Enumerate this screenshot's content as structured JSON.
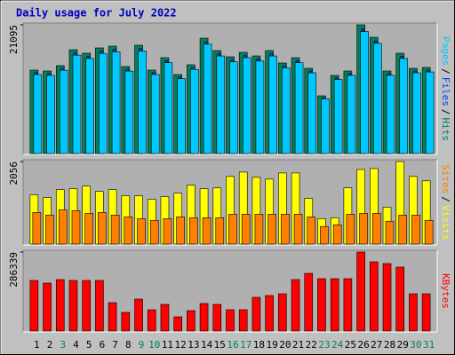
{
  "title": "Daily usage for July 2022",
  "separator": "/",
  "weekend_color": "#00805c",
  "weekend_indices": [
    2,
    8,
    9,
    15,
    16,
    22,
    23,
    29,
    30
  ],
  "chart_data": [
    {
      "type": "bar",
      "ylim": [
        0,
        21095
      ],
      "yticks": [
        21095
      ],
      "series": [
        {
          "name": "Hits",
          "color": "#00805c",
          "values": [
            13624,
            13478,
            14357,
            16994,
            16408,
            17287,
            17580,
            14210,
            17726,
            13624,
            15675,
            12892,
            14503,
            18898,
            16847,
            15822,
            16554,
            15968,
            16847,
            14796,
            15675,
            13917,
            9376,
            12745,
            13478,
            21095,
            19045,
            13478,
            16408,
            13917,
            14064
          ]
        },
        {
          "name": "Files",
          "color": "#0040ff",
          "values": [
            13200,
            13050,
            13900,
            16450,
            15900,
            16750,
            17030,
            13760,
            17170,
            13200,
            15180,
            12480,
            14050,
            18300,
            16320,
            15320,
            16030,
            15460,
            16320,
            14330,
            15180,
            13480,
            9080,
            12340,
            13050,
            20430,
            18440,
            13050,
            15900,
            13480,
            13620
          ]
        },
        {
          "name": "Pages",
          "color": "#00c8ff",
          "values": [
            12900,
            12760,
            13600,
            16090,
            15540,
            16380,
            16650,
            13460,
            16790,
            12900,
            14850,
            12210,
            13740,
            17900,
            15960,
            14990,
            15680,
            15120,
            15960,
            14010,
            14850,
            13180,
            8880,
            12070,
            12760,
            19980,
            18040,
            12760,
            15540,
            13180,
            13320
          ]
        }
      ]
    },
    {
      "type": "bar",
      "ylim": [
        0,
        2056
      ],
      "yticks": [
        2056
      ],
      "series": [
        {
          "name": "Visits",
          "color": "#ffff00",
          "values": [
            1216,
            1149,
            1348,
            1370,
            1437,
            1304,
            1348,
            1193,
            1193,
            1105,
            1171,
            1260,
            1459,
            1370,
            1392,
            1680,
            1790,
            1658,
            1613,
            1768,
            1768,
            1127,
            619,
            641,
            1392,
            1856,
            1879,
            906,
            2056,
            1680,
            1569
          ]
        },
        {
          "name": "Sites",
          "color": "#ff8000",
          "values": [
            774,
            707,
            840,
            818,
            751,
            774,
            707,
            663,
            619,
            575,
            619,
            663,
            641,
            641,
            641,
            729,
            729,
            729,
            729,
            729,
            729,
            663,
            420,
            464,
            729,
            751,
            751,
            553,
            707,
            707,
            575
          ]
        }
      ]
    },
    {
      "type": "bar",
      "ylim": [
        0,
        286339
      ],
      "yticks": [
        286339
      ],
      "categories": [
        "1",
        "2",
        "3",
        "4",
        "5",
        "6",
        "7",
        "8",
        "9",
        "10",
        "11",
        "12",
        "13",
        "14",
        "15",
        "16",
        "17",
        "18",
        "19",
        "20",
        "21",
        "22",
        "23",
        "24",
        "25",
        "26",
        "27",
        "28",
        "29",
        "30",
        "31"
      ],
      "series": [
        {
          "name": "KBytes",
          "color": "#ff0000",
          "values": [
            182224,
            172462,
            185478,
            182224,
            182224,
            182224,
            100874,
            65080,
            113890,
            74842,
            94366,
            48810,
            71588,
            97620,
            94366,
            74842,
            74842,
            120398,
            126906,
            133414,
            185478,
            208256,
            188732,
            188732,
            188732,
            286339,
            250558,
            244050,
            231034,
            133414,
            133414
          ]
        }
      ]
    }
  ]
}
